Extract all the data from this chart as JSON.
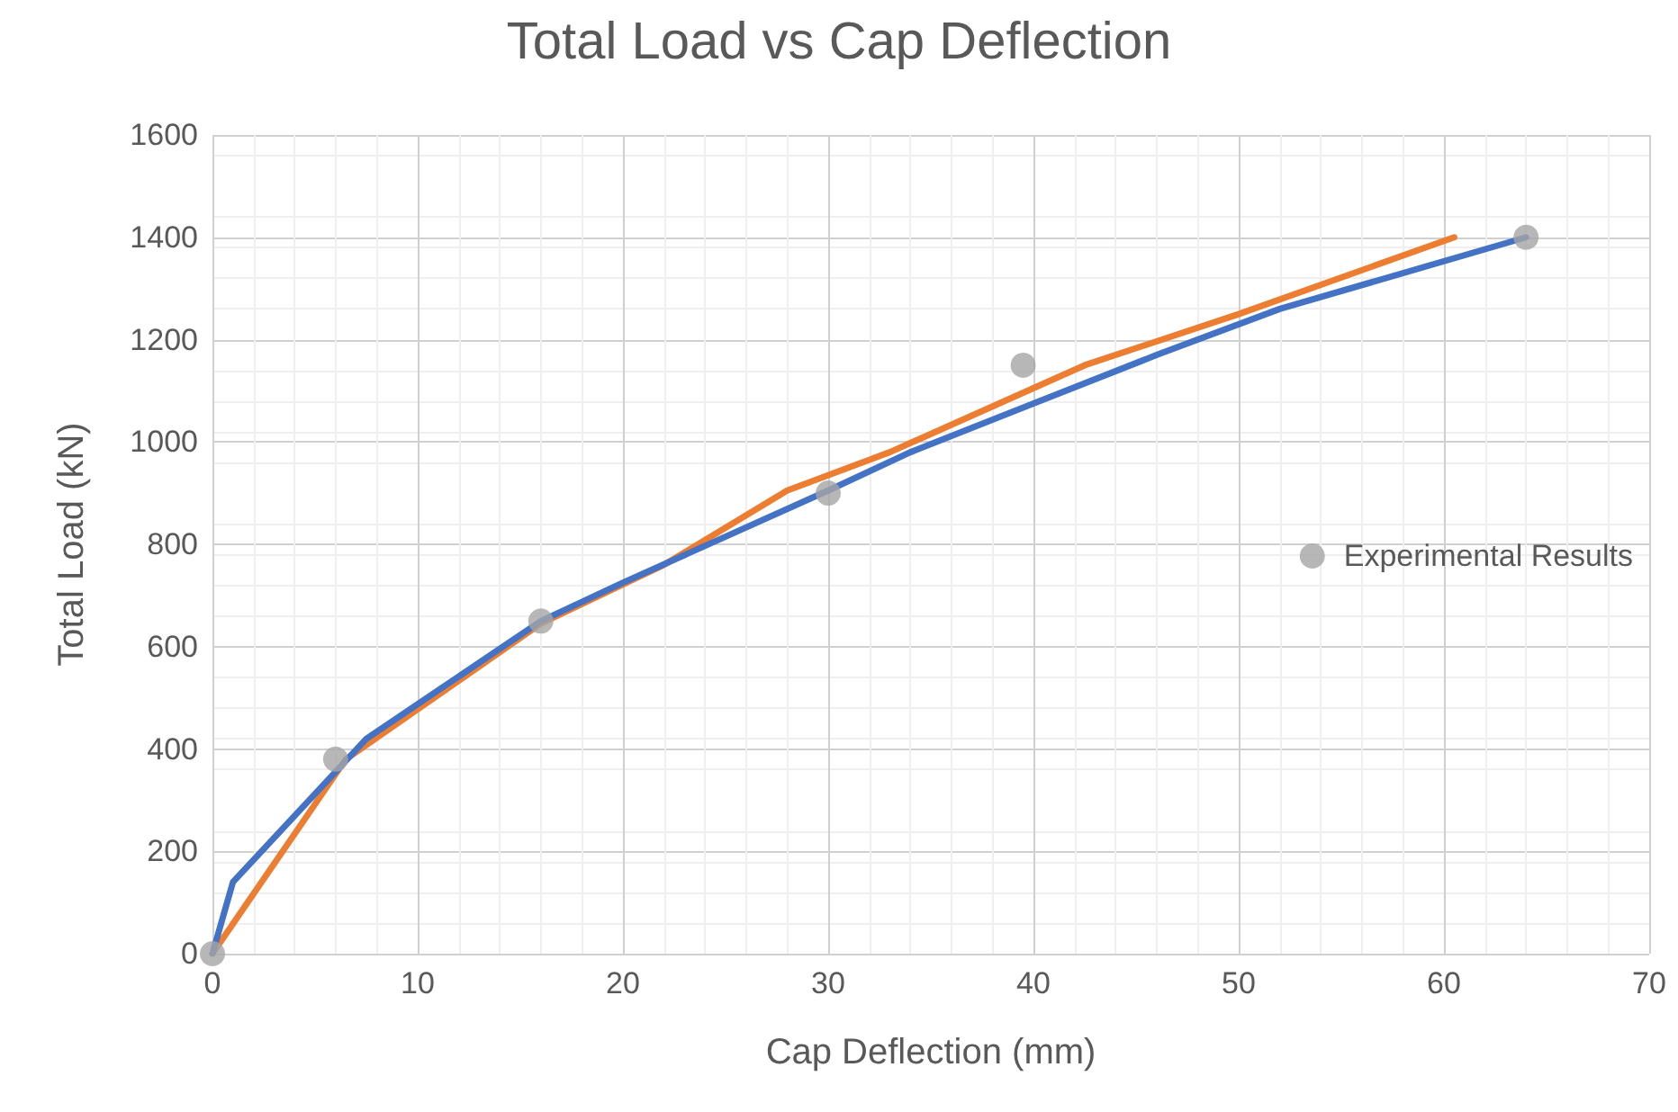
{
  "chart_data": {
    "type": "line",
    "title": "Total Load vs Cap Deflection",
    "xlabel": "Cap Deflection (mm)",
    "ylabel": "Total Load (kN)",
    "xlim": [
      0,
      70
    ],
    "xticks": [
      0,
      10,
      20,
      30,
      40,
      50,
      60,
      70
    ],
    "ylim": [
      0,
      1600
    ],
    "yticks": [
      0,
      200,
      400,
      600,
      800,
      1000,
      1200,
      1400,
      1600
    ],
    "grid": true,
    "legend": "right",
    "marker": "none",
    "line_style": "solid",
    "series": [
      {
        "color": "#ed7d31",
        "x": [
          0,
          6.5,
          16,
          22,
          28,
          33,
          42.5,
          50,
          60.5
        ],
        "values": [
          0,
          380,
          645,
          760,
          905,
          980,
          1150,
          1250,
          1400
        ]
      },
      {
        "color": "#4472c4",
        "x": [
          0,
          1,
          7.5,
          16,
          20,
          30,
          34,
          40,
          46,
          52,
          64
        ],
        "values": [
          0,
          140,
          420,
          650,
          725,
          905,
          980,
          1075,
          1170,
          1260,
          1400
        ]
      },
      {
        "name": "Experimental Results",
        "type": "scatter",
        "marker": "circle",
        "color": "#a5a5a5",
        "x": [
          0,
          6,
          16,
          30,
          39.5,
          64
        ],
        "values": [
          0,
          380,
          650,
          900,
          1150,
          1400
        ]
      }
    ]
  }
}
